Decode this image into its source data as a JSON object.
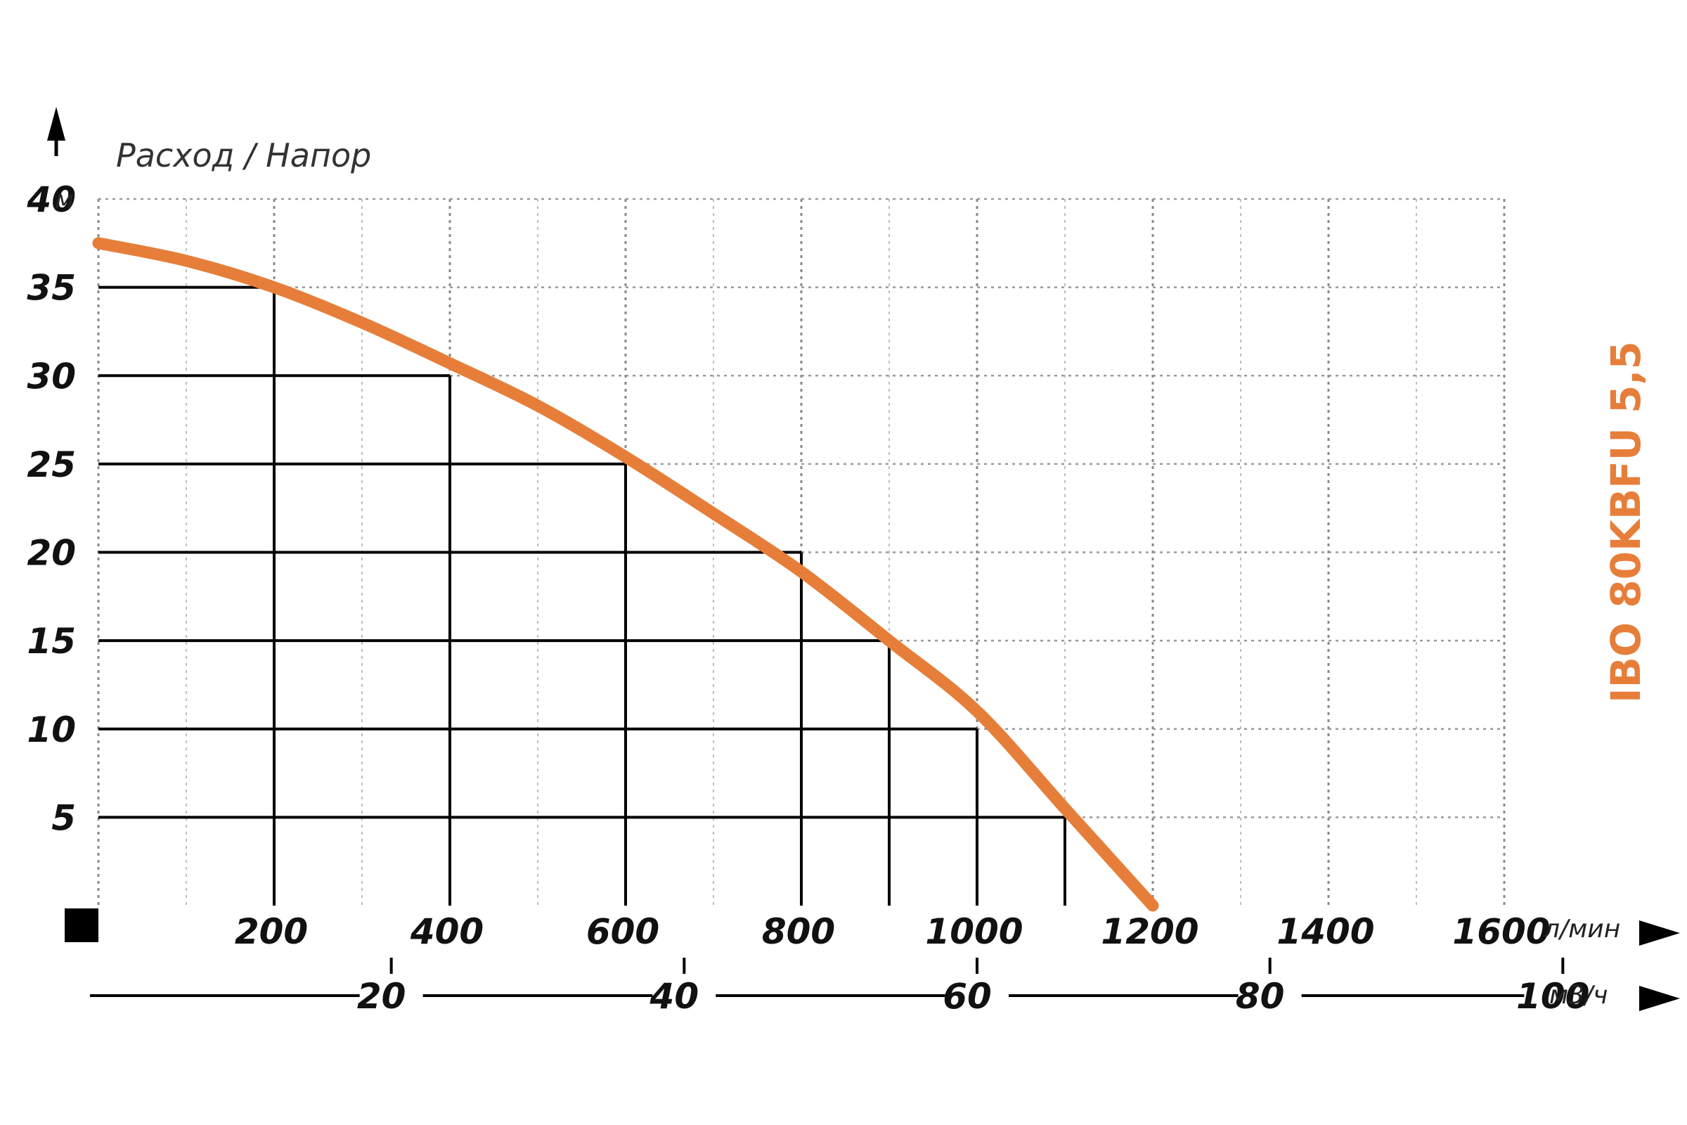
{
  "chart_data": {
    "type": "line",
    "title": "Расход / Напор",
    "model_label": "IBO 80KBFU 5,5",
    "x_unit": "л/мин",
    "y_unit": "м",
    "secondary_x_unit": "м3/ч",
    "xlim": [
      0,
      1600
    ],
    "ylim": [
      0,
      40
    ],
    "x_ticks": [
      "200",
      "400",
      "600",
      "800",
      "1000",
      "1200",
      "1400",
      "1600"
    ],
    "y_ticks": [
      "40",
      "35",
      "30",
      "25",
      "20",
      "15",
      "10",
      "5"
    ],
    "secondary_x_ticks": [
      "20",
      "40",
      "60",
      "80",
      "100"
    ],
    "secondary_x_tick_values": [
      20,
      40,
      60,
      80,
      100
    ],
    "grid": true,
    "series": [
      {
        "color": "#E67E3A",
        "x": [
          0,
          100,
          200,
          300,
          400,
          500,
          600,
          700,
          800,
          900,
          1000,
          1100,
          1200
        ],
        "values": [
          37.5,
          36.5,
          35,
          33,
          30.7,
          28.3,
          25.4,
          22.2,
          18.9,
          15.0,
          11.0,
          5.5,
          0
        ]
      }
    ],
    "operating_points": [
      {
        "x": 200,
        "y": 35
      },
      {
        "x": 400,
        "y": 30
      },
      {
        "x": 600,
        "y": 25
      },
      {
        "x": 800,
        "y": 20
      },
      {
        "x": 900,
        "y": 15
      },
      {
        "x": 1000,
        "y": 10
      },
      {
        "x": 1100,
        "y": 5
      }
    ]
  }
}
